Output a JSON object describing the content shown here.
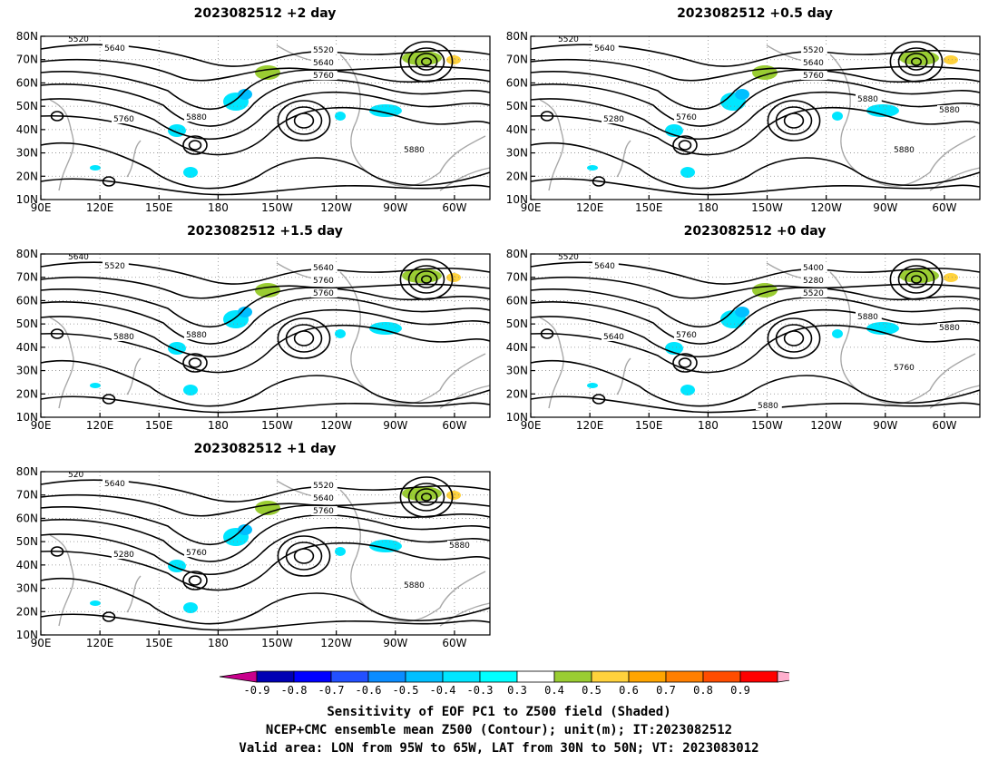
{
  "panels": [
    {
      "title": "2023082512 +2 day"
    },
    {
      "title": "2023082512 +0.5 day"
    },
    {
      "title": "2023082512 +1.5 day"
    },
    {
      "title": "2023082512 +0 day"
    },
    {
      "title": "2023082512 +1 day"
    }
  ],
  "axes": {
    "lat_ticks": [
      "80N",
      "70N",
      "60N",
      "50N",
      "40N",
      "30N",
      "20N",
      "10N"
    ],
    "lon_ticks": [
      "90E",
      "120E",
      "150E",
      "180",
      "150W",
      "120W",
      "90W",
      "60W"
    ]
  },
  "contour_labels": {
    "p0": [
      "5520",
      "5640",
      "5520",
      "5640",
      "5760",
      "5760",
      "5880",
      "5880"
    ],
    "p1": [
      "5520",
      "5640",
      "5520",
      "5640",
      "5760",
      "5280",
      "5760",
      "5880",
      "5880",
      "5880"
    ],
    "p2": [
      "5640",
      "5520",
      "5640",
      "5760",
      "5760",
      "5880",
      "5880"
    ],
    "p3": [
      "5520",
      "5640",
      "5400",
      "5280",
      "5520",
      "5640",
      "5760",
      "5760",
      "5880",
      "5880",
      "5880"
    ],
    "p4": [
      "520",
      "5640",
      "5520",
      "5640",
      "5760",
      "5280",
      "5760",
      "5880",
      "5880"
    ]
  },
  "colorbar": {
    "ticks": [
      "-0.9",
      "-0.8",
      "-0.7",
      "-0.6",
      "-0.5",
      "-0.4",
      "-0.3",
      "0.3",
      "0.4",
      "0.5",
      "0.6",
      "0.7",
      "0.8",
      "0.9"
    ],
    "colors": [
      "#c8008c",
      "#0000b4",
      "#0000ff",
      "#2350ff",
      "#0a8cff",
      "#00bfff",
      "#00e6ff",
      "#00ffff",
      "#ffffff",
      "#9acd32",
      "#ffd23c",
      "#ffa500",
      "#ff7f00",
      "#ff4d00",
      "#ff0000",
      "#ffafcd"
    ]
  },
  "footer": {
    "line1": "Sensitivity of EOF PC1 to Z500 field (Shaded)",
    "line2": "NCEP+CMC ensemble mean Z500 (Contour); unit(m); IT:2023082512",
    "line3": "Valid area: LON from 95W to 65W, LAT from 30N to 50N; VT: 2023083012"
  }
}
